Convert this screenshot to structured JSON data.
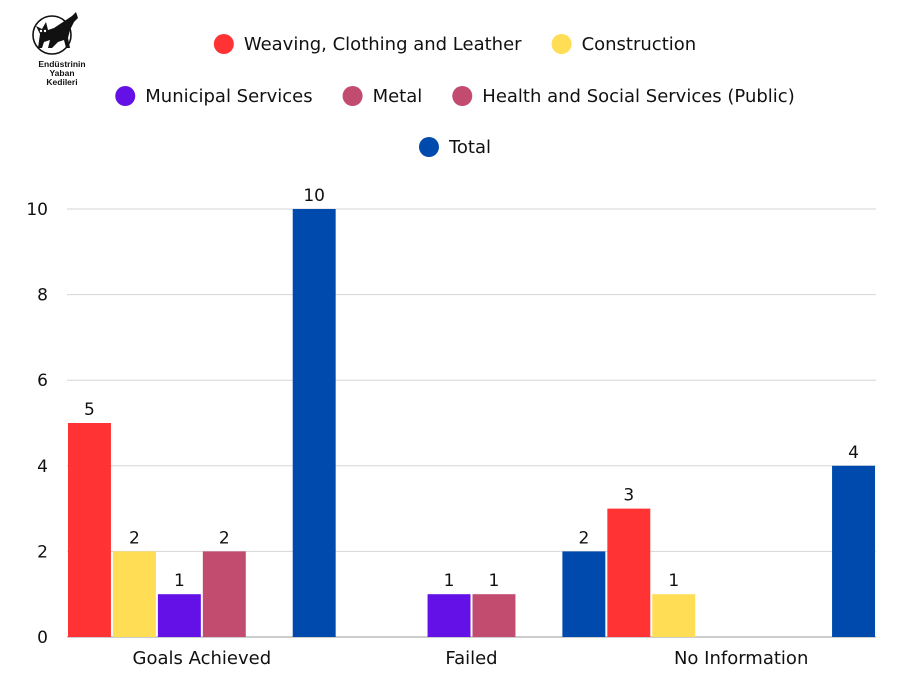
{
  "logo": {
    "line1": "Endüstrinin",
    "line2": "Yaban",
    "line3": "Kedileri"
  },
  "chart_data": {
    "type": "bar",
    "categories": [
      "Goals Achieved",
      "Failed",
      "No Information"
    ],
    "series": [
      {
        "name": "Weaving, Clothing and Leather",
        "color": "#ff3333",
        "values": [
          5,
          null,
          3
        ]
      },
      {
        "name": "Construction",
        "color": "#ffdd55",
        "values": [
          2,
          null,
          1
        ]
      },
      {
        "name": "Municipal Services",
        "color": "#6411e8",
        "values": [
          1,
          1,
          null
        ]
      },
      {
        "name": "Metal",
        "color": "#c24b70",
        "values": [
          2,
          1,
          null
        ]
      },
      {
        "name": "Health and Social Services (Public)",
        "color": "#c24b70",
        "values": [
          null,
          null,
          null
        ]
      },
      {
        "name": "Total",
        "color": "#004aad",
        "values": [
          10,
          2,
          4
        ]
      }
    ],
    "yticks": [
      0,
      2,
      4,
      6,
      8,
      10
    ],
    "ylim": [
      0,
      10
    ],
    "grid": true,
    "legend": "top-center",
    "title": "",
    "xlabel": "",
    "ylabel": ""
  }
}
